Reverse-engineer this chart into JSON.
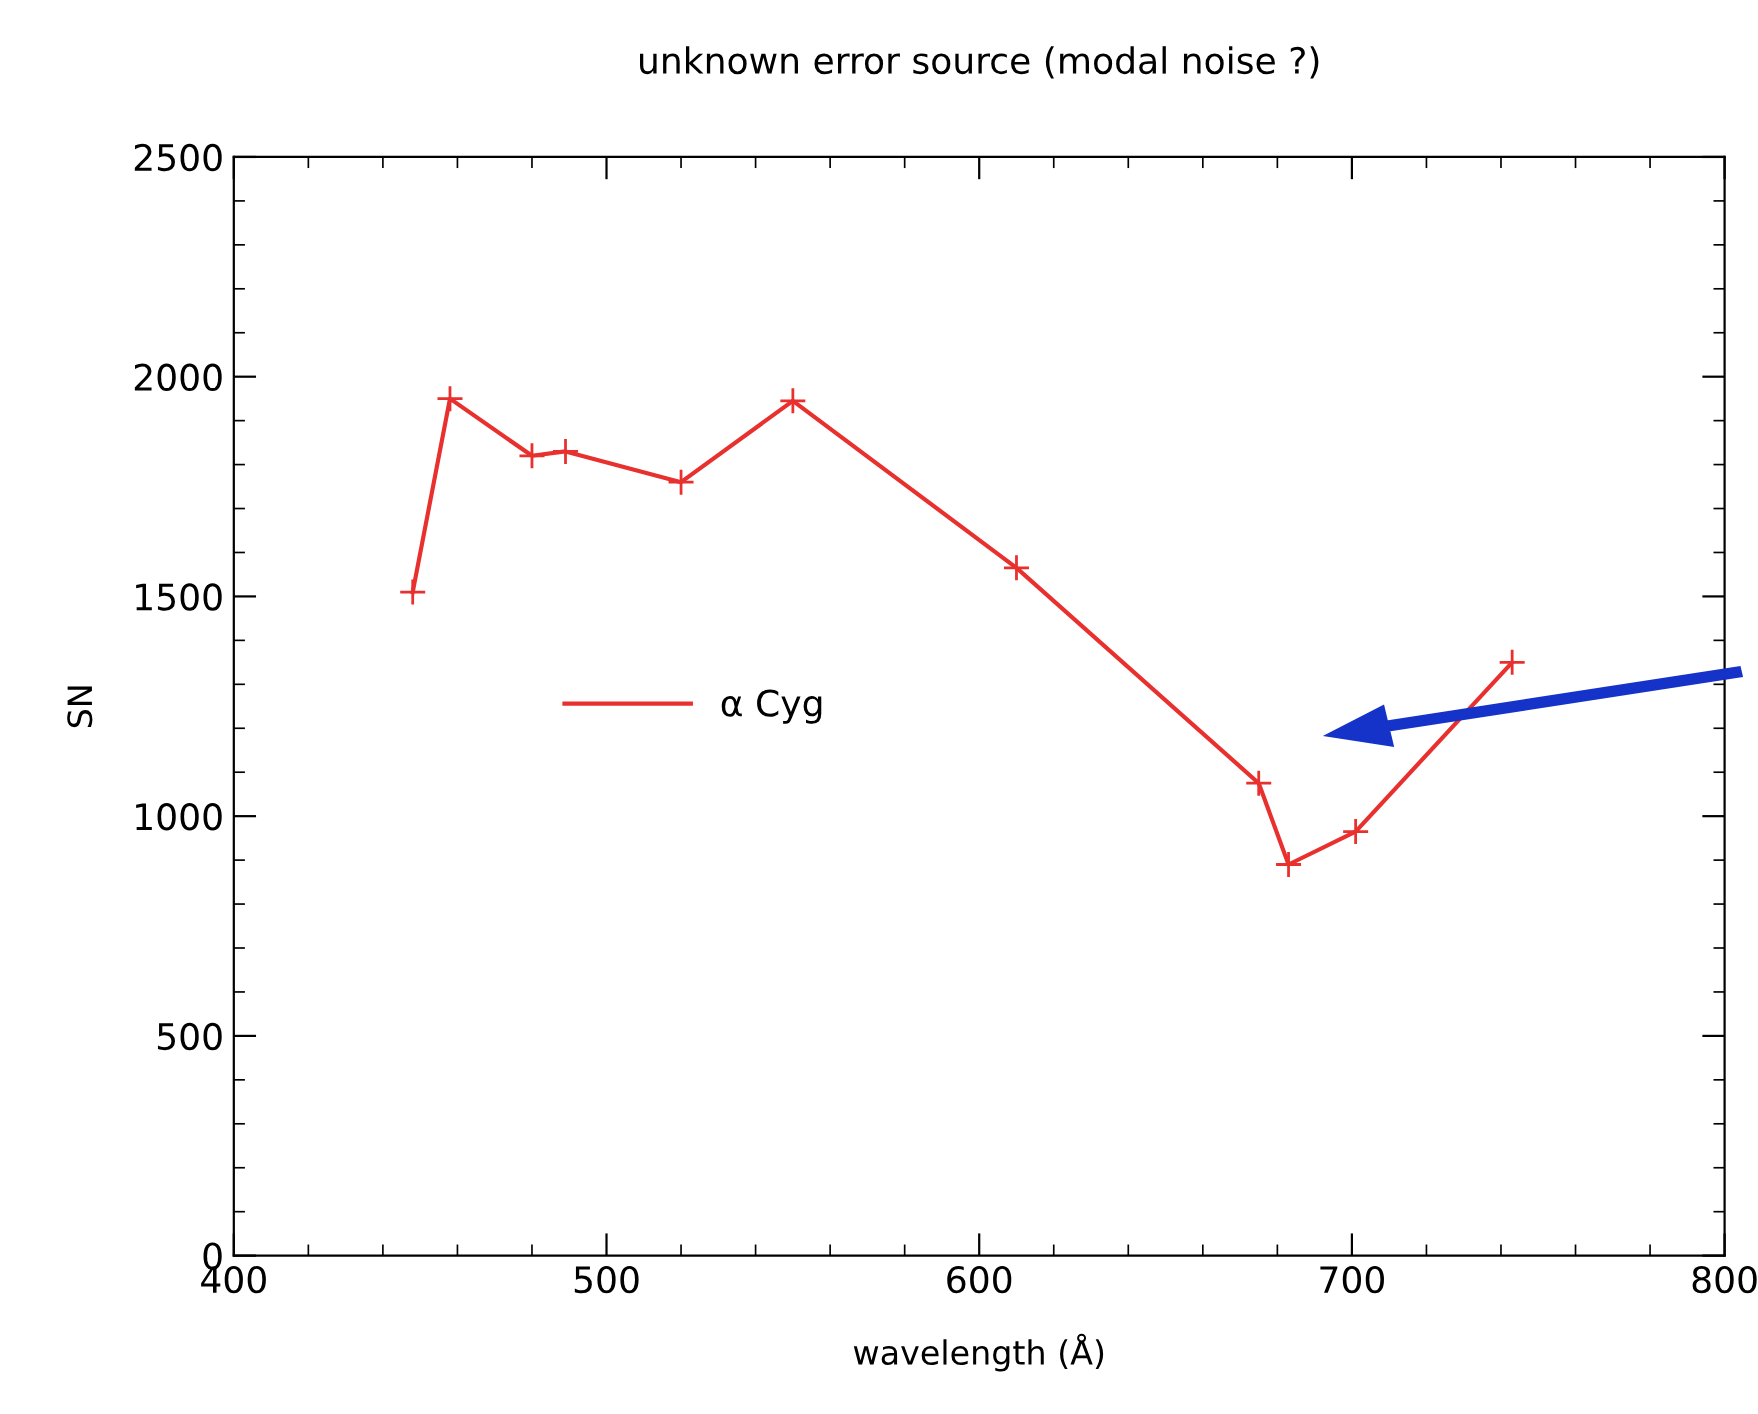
{
  "chart_data": {
    "type": "line",
    "title": "unknown error source (modal noise ?)",
    "xlabel": "wavelength (Å)",
    "ylabel": "SN",
    "x": [
      448,
      458,
      480,
      489,
      520,
      550,
      610,
      675,
      683,
      701,
      743
    ],
    "series": [
      {
        "name": "α Cyg",
        "color": "#e8312f",
        "values": [
          1510,
          1950,
          1820,
          1830,
          1760,
          1945,
          1565,
          1075,
          890,
          965,
          1350
        ]
      }
    ],
    "xlim": [
      400,
      800
    ],
    "xticks": [
      400,
      500,
      600,
      700,
      800
    ],
    "ylim": [
      0,
      2500
    ],
    "yticks": [
      0,
      500,
      1000,
      1500,
      2000,
      2500
    ],
    "marker": "cross",
    "line_style": "solid",
    "legend": "left",
    "grid": false
  }
}
